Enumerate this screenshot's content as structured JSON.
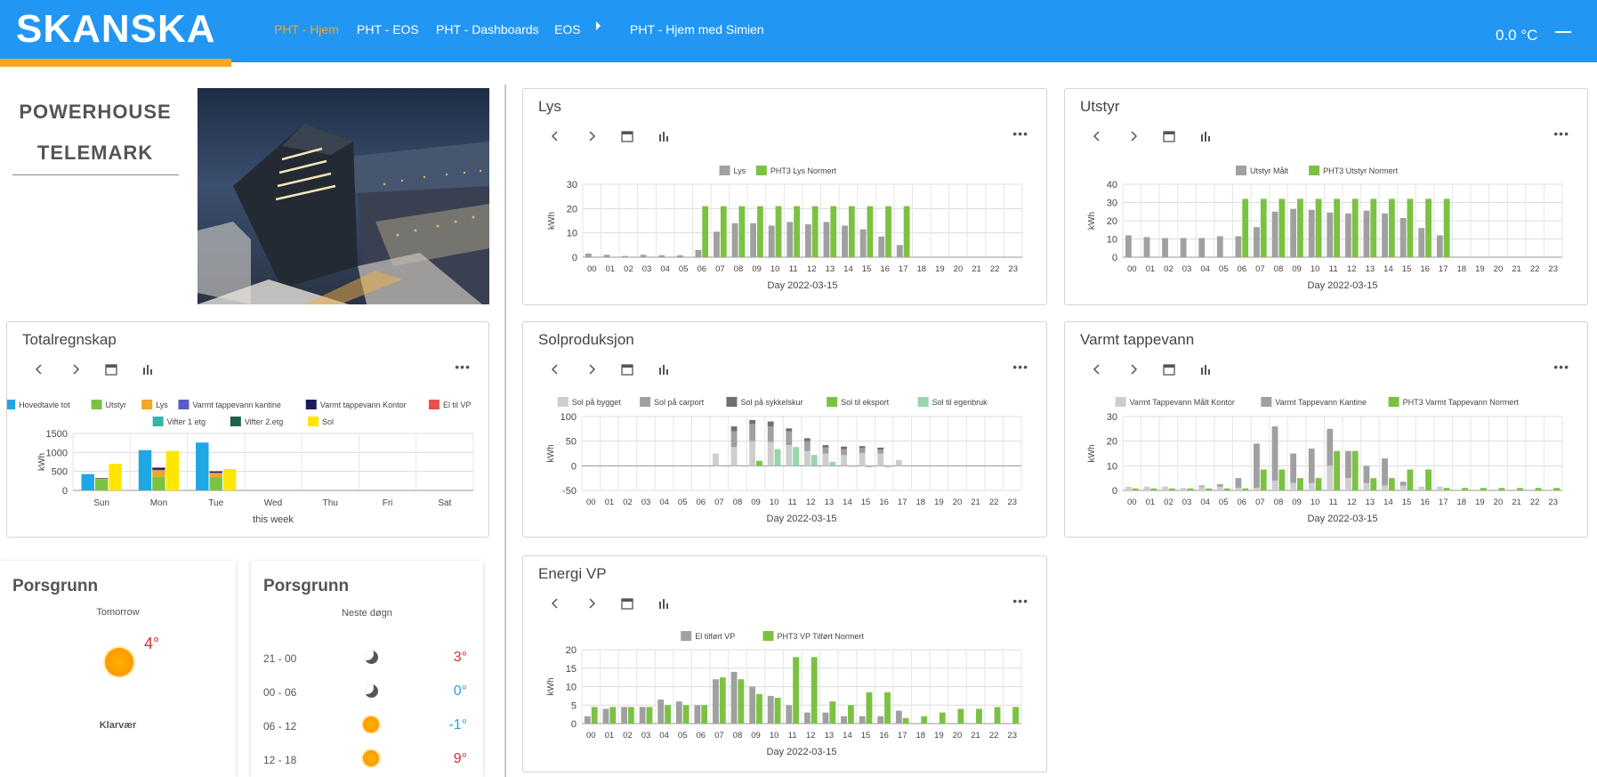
{
  "header": {
    "logo": "SKANSKA",
    "nav": [
      {
        "label": "PHT - Hjem",
        "active": true
      },
      {
        "label": "PHT - EOS",
        "active": false
      },
      {
        "label": "PHT - Dashboards",
        "active": false
      },
      {
        "label": "EOS",
        "active": false
      },
      {
        "label": "PHT - Hjem med Simien",
        "active": false
      }
    ],
    "temperature": "0.0 °C",
    "colors": {
      "bar": "#2196f3",
      "accent": "#f5a623"
    }
  },
  "building": {
    "title_line1": "POWERHOUSE",
    "title_line2": "TELEMARK"
  },
  "colors": {
    "green": "#7cc242",
    "gray": "#a0a0a0"
  },
  "hours": [
    "00",
    "01",
    "02",
    "03",
    "04",
    "05",
    "06",
    "07",
    "08",
    "09",
    "10",
    "11",
    "12",
    "13",
    "14",
    "15",
    "16",
    "17",
    "18",
    "19",
    "20",
    "21",
    "22",
    "23"
  ],
  "day_label": "Day 2022-03-15",
  "charts": {
    "lys": {
      "title": "Lys",
      "chart_data": {
        "type": "bar",
        "ylabel": "kWh",
        "xlabel": "Day 2022-03-15",
        "ylim": [
          0,
          30
        ],
        "yticks": [
          0,
          10,
          20,
          30
        ],
        "series": [
          {
            "name": "Lys",
            "color": "#a0a0a0",
            "values": [
              1.5,
              1,
              0.5,
              1,
              0.8,
              0.8,
              3,
              10.5,
              14,
              14,
              13,
              14.5,
              13.5,
              14.5,
              13,
              11.5,
              8.5,
              5,
              0,
              0,
              0,
              0,
              0,
              0
            ]
          },
          {
            "name": "PHT3 Lys Normert",
            "color": "#7cc242",
            "values": [
              0,
              0,
              0,
              0,
              0,
              0,
              21,
              21,
              21,
              21,
              21,
              21,
              21,
              21,
              21,
              21,
              21,
              21,
              0,
              0,
              0,
              0,
              0,
              0
            ]
          }
        ]
      }
    },
    "utstyr": {
      "title": "Utstyr",
      "chart_data": {
        "type": "bar",
        "ylabel": "kWh",
        "xlabel": "Day 2022-03-15",
        "ylim": [
          0,
          40
        ],
        "yticks": [
          0,
          10,
          20,
          30,
          40
        ],
        "series": [
          {
            "name": "Utstyr Målt",
            "color": "#a0a0a0",
            "values": [
              12,
              11,
              10.5,
              10.5,
              10.5,
              11.5,
              11.5,
              16.5,
              25,
              26.5,
              26,
              24.5,
              24,
              25.5,
              24,
              21.5,
              16,
              12,
              0,
              0,
              0,
              0,
              0,
              0
            ]
          },
          {
            "name": "PHT3 Utstyr Normert",
            "color": "#7cc242",
            "values": [
              0,
              0,
              0,
              0,
              0,
              0,
              32,
              32,
              32,
              32,
              32,
              32,
              32,
              32,
              32,
              32,
              32,
              32,
              0,
              0,
              0,
              0,
              0,
              0
            ]
          }
        ]
      }
    },
    "sol": {
      "title": "Solproduksjon",
      "chart_data": {
        "type": "bar",
        "ylabel": "kWh",
        "xlabel": "Day 2022-03-15",
        "ylim": [
          -50,
          100
        ],
        "yticks": [
          -50,
          0,
          50,
          100
        ],
        "stacked_groups": [
          {
            "stack": "a",
            "series": [
              "Sol på bygget",
              "Sol på carport",
              "Sol på sykkelskur"
            ]
          },
          {
            "stack": "b",
            "series": [
              "Sol til eksport",
              "Sol til egenbruk"
            ]
          }
        ],
        "series": [
          {
            "name": "Sol på bygget",
            "color": "#cdcdcd",
            "stack": "a",
            "values": [
              0,
              0,
              0,
              0,
              0,
              0,
              0,
              25,
              38,
              50,
              48,
              42,
              30,
              25,
              22,
              26,
              25,
              12,
              0,
              0,
              0,
              0,
              0,
              0
            ]
          },
          {
            "name": "Sol på carport",
            "color": "#a0a0a0",
            "stack": "a",
            "values": [
              0,
              0,
              0,
              0,
              0,
              0,
              0,
              0,
              32,
              35,
              32,
              28,
              20,
              12,
              12,
              10,
              8,
              0,
              0,
              0,
              0,
              0,
              0,
              0
            ]
          },
          {
            "name": "Sol på sykkelskur",
            "color": "#707070",
            "stack": "a",
            "values": [
              0,
              0,
              0,
              0,
              0,
              0,
              0,
              0,
              10,
              8,
              10,
              6,
              6,
              5,
              5,
              4,
              4,
              0,
              0,
              0,
              0,
              0,
              0,
              0
            ]
          },
          {
            "name": "Sol til eksport",
            "color": "#7cc242",
            "stack": "b",
            "values": [
              0,
              0,
              0,
              0,
              0,
              0,
              0,
              0,
              0,
              10,
              0,
              0,
              0,
              0,
              0,
              0,
              0,
              0,
              0,
              0,
              0,
              0,
              0,
              0
            ]
          },
          {
            "name": "Sol til egenbruk",
            "color": "#96d6a8",
            "stack": "b",
            "values": [
              0,
              0,
              0,
              0,
              0,
              0,
              0,
              0,
              0,
              0,
              34,
              38,
              22,
              8,
              -2,
              -3,
              -3,
              0,
              0,
              0,
              0,
              0,
              0,
              0
            ]
          }
        ]
      }
    },
    "varmt": {
      "title": "Varmt tappevann",
      "chart_data": {
        "type": "bar",
        "ylabel": "kWh",
        "xlabel": "Day 2022-03-15",
        "ylim": [
          0,
          30
        ],
        "yticks": [
          0,
          10,
          20,
          30
        ],
        "stacked_groups": [
          {
            "stack": "a",
            "series": [
              "Varmt Tappevann Målt Kontor",
              "Varmt Tappevann Kantine"
            ]
          },
          {
            "stack": "b",
            "series": [
              "PHT3 Varmt Tappevann Normert"
            ]
          }
        ],
        "series": [
          {
            "name": "Varmt Tappevann Målt Kontor",
            "color": "#cdcdcd",
            "stack": "a",
            "values": [
              1.5,
              1.5,
              1.5,
              1,
              1.5,
              1.5,
              1,
              1,
              4,
              3,
              3,
              10,
              5,
              3,
              2,
              2,
              1.5,
              1.5,
              0,
              0,
              0,
              0,
              0,
              0
            ]
          },
          {
            "name": "Varmt Tappevann Kantine",
            "color": "#a0a0a0",
            "stack": "a",
            "values": [
              0,
              0,
              0,
              0,
              0.5,
              1,
              4,
              18,
              22,
              12,
              14,
              15,
              11,
              7,
              11,
              1.5,
              0,
              0,
              0,
              0,
              0,
              0,
              0,
              0
            ]
          },
          {
            "name": "PHT3 Varmt Tappevann Normert",
            "color": "#7cc242",
            "stack": "b",
            "values": [
              0.8,
              0.8,
              0.8,
              0.8,
              0.8,
              0.8,
              0.8,
              8.5,
              8.5,
              5,
              5,
              16,
              16,
              5,
              5,
              8.5,
              8.5,
              1,
              1,
              1,
              1,
              1,
              1,
              1
            ]
          }
        ]
      }
    },
    "vp": {
      "title": "Energi VP",
      "chart_data": {
        "type": "bar",
        "ylabel": "kWh",
        "xlabel": "Day 2022-03-15",
        "ylim": [
          0,
          20
        ],
        "yticks": [
          0,
          5,
          10,
          15,
          20
        ],
        "series": [
          {
            "name": "El tilført VP",
            "color": "#a0a0a0",
            "values": [
              2,
              4,
              4.5,
              4.5,
              6.5,
              6,
              5,
              12,
              14,
              10,
              7.5,
              5,
              3,
              3,
              2,
              2,
              2,
              3.5,
              0,
              0,
              0,
              0,
              0,
              0
            ]
          },
          {
            "name": "PHT3 VP Tilført Normert",
            "color": "#7cc242",
            "values": [
              4.5,
              4.5,
              4.5,
              4.5,
              5,
              5,
              5,
              12.5,
              12,
              8,
              7,
              18,
              18,
              6,
              5,
              8.5,
              8.5,
              1.5,
              2,
              3,
              4,
              4,
              4.5,
              4.5
            ]
          }
        ]
      }
    },
    "total": {
      "title": "Totalregnskap",
      "chart_data": {
        "type": "bar",
        "ylabel": "kWh",
        "xlabel": "this week",
        "ylim": [
          0,
          1500
        ],
        "yticks": [
          0,
          500,
          1000,
          1500
        ],
        "categories": [
          "Sun",
          "Mon",
          "Tue",
          "Wed",
          "Thu",
          "Fri",
          "Sat"
        ],
        "series": [
          {
            "name": "Hovedtavle tot",
            "color": "#1ea7e4",
            "stack": "h",
            "values": [
              430,
              1060,
              1260,
              0,
              0,
              0,
              0
            ]
          },
          {
            "name": "Utstyr",
            "color": "#7cc242",
            "stack": "m",
            "values": [
              300,
              360,
              340,
              0,
              0,
              0,
              0
            ]
          },
          {
            "name": "Lys",
            "color": "#f5a623",
            "stack": "m",
            "values": [
              20,
              170,
              120,
              0,
              0,
              0,
              0
            ]
          },
          {
            "name": "Varmt tappevann kantine",
            "color": "#5b5bc8",
            "stack": "m",
            "values": [
              0,
              20,
              10,
              0,
              0,
              0,
              0
            ]
          },
          {
            "name": "Varmt tappevann Kontor",
            "color": "#1a1a5e",
            "stack": "m",
            "values": [
              5,
              40,
              30,
              0,
              0,
              0,
              0
            ]
          },
          {
            "name": "El til VP",
            "color": "#e85050",
            "stack": "m",
            "values": [
              0,
              20,
              10,
              0,
              0,
              0,
              0
            ]
          },
          {
            "name": "Vifter 1 etg",
            "color": "#35b5a6",
            "stack": "m",
            "values": [
              0,
              0,
              0,
              0,
              0,
              0,
              0
            ]
          },
          {
            "name": "Vifter 2.etg",
            "color": "#206050",
            "stack": "m",
            "values": [
              0,
              0,
              0,
              0,
              0,
              0,
              0
            ]
          },
          {
            "name": "Sol",
            "color": "#ffe600",
            "stack": "s",
            "values": [
              700,
              1040,
              560,
              0,
              0,
              0,
              0
            ]
          }
        ]
      }
    }
  },
  "weather": {
    "left": {
      "city": "Porsgrunn",
      "subtitle": "Tomorrow",
      "temp": "4°",
      "condition": "Klarvær"
    },
    "right": {
      "city": "Porsgrunn",
      "subtitle": "Neste døgn",
      "rows": [
        {
          "time": "21 - 00",
          "icon": "moon-icon",
          "temp": "3°",
          "color": "#d32f2f"
        },
        {
          "time": "00 - 06",
          "icon": "moon-icon",
          "temp": "0°",
          "color": "#29a3e0"
        },
        {
          "time": "06 - 12",
          "icon": "sun-icon",
          "temp": "-1°",
          "color": "#29a3e0"
        },
        {
          "time": "12 - 18",
          "icon": "sun-icon",
          "temp": "9°",
          "color": "#d32f2f"
        }
      ]
    }
  }
}
